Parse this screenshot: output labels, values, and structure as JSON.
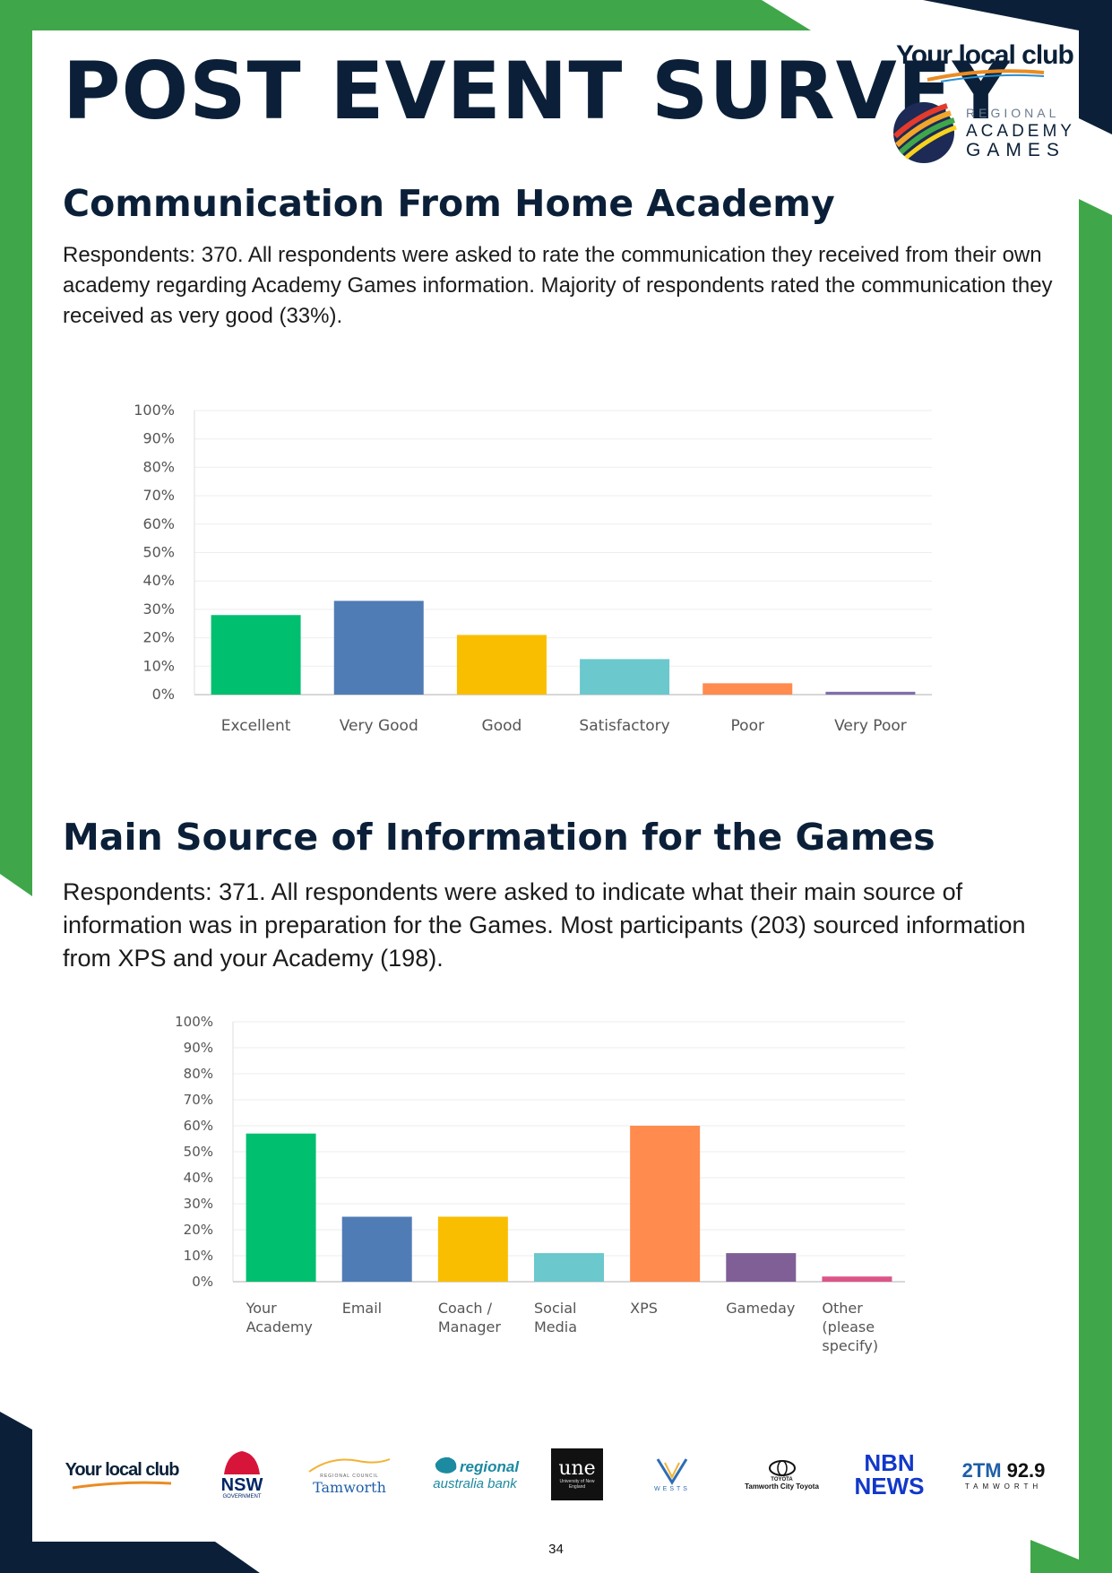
{
  "header": {
    "title": "POST EVENT SURVEY",
    "club_logo_text": "Your local club",
    "rag_logo": {
      "line1": "REGIONAL",
      "line2": "ACADEMY",
      "line3": "GAMES"
    }
  },
  "sections": [
    {
      "heading": "Communication From Home Academy",
      "body": "Respondents: 370. All respondents were asked to rate the communication they received from their own academy regarding Academy Games information. Majority of respondents rated the communication they received as very good (33%)."
    },
    {
      "heading": "Main Source of Information for the Games",
      "body": "Respondents: 371. All respondents were asked to indicate what their main source of information was in preparation for the Games. Most participants (203) sourced information from XPS and your Academy (198)."
    }
  ],
  "chart_data": [
    {
      "type": "bar",
      "title": "",
      "xlabel": "",
      "ylabel": "",
      "ylim": [
        0,
        100
      ],
      "y_ticks": [
        "0%",
        "10%",
        "20%",
        "30%",
        "40%",
        "50%",
        "60%",
        "70%",
        "80%",
        "90%",
        "100%"
      ],
      "grid": true,
      "categories": [
        "Excellent",
        "Very Good",
        "Good",
        "Satisfactory",
        "Poor",
        "Very Poor"
      ],
      "values": [
        28,
        33,
        21,
        12.5,
        4,
        1
      ],
      "colors": [
        "#00bf6f",
        "#507cb6",
        "#f9be00",
        "#6bc8cd",
        "#ff8b4f",
        "#7f6eaa"
      ]
    },
    {
      "type": "bar",
      "title": "",
      "xlabel": "",
      "ylabel": "",
      "ylim": [
        0,
        100
      ],
      "y_ticks": [
        "0%",
        "10%",
        "20%",
        "30%",
        "40%",
        "50%",
        "60%",
        "70%",
        "80%",
        "90%",
        "100%"
      ],
      "grid": true,
      "categories": [
        [
          "Your",
          "Academy"
        ],
        [
          "Email"
        ],
        [
          "Coach /",
          "Manager"
        ],
        [
          "Social",
          "Media"
        ],
        [
          "XPS"
        ],
        [
          "Gameday"
        ],
        [
          "Other",
          "(please",
          "specify)"
        ]
      ],
      "values": [
        57,
        25,
        25,
        11,
        60,
        11,
        2
      ],
      "colors": [
        "#00bf6f",
        "#507cb6",
        "#f9be00",
        "#6bc8cd",
        "#ff8b4f",
        "#7f5f96",
        "#dc5589"
      ]
    }
  ],
  "sponsors": [
    {
      "name": "Your local club"
    },
    {
      "name": "NSW",
      "sub": "GOVERNMENT"
    },
    {
      "name": "Tamworth",
      "sub": "REGIONAL COUNCIL"
    },
    {
      "name": "regional",
      "sub": "australia bank"
    },
    {
      "name": "une",
      "sub": "University of New England"
    },
    {
      "name": "WESTS"
    },
    {
      "name": "TOYOTA",
      "sub": "Tamworth City Toyota"
    },
    {
      "name": "NBN",
      "sub": "NEWS"
    },
    {
      "name": "2TM",
      "sub": "92.9",
      "extra": "TAMWORTH"
    }
  ],
  "footer": {
    "page_number": "34"
  },
  "colors": {
    "navy": "#0b2038",
    "green": "#3fa74a"
  }
}
